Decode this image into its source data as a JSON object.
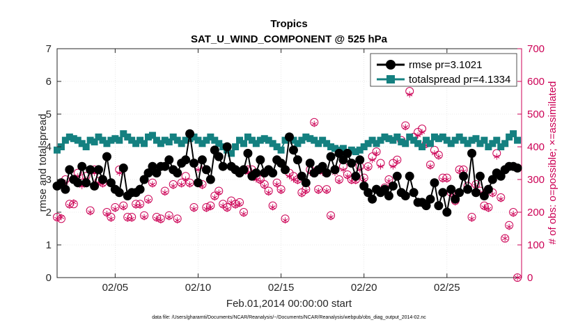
{
  "chart_data": {
    "type": "line",
    "title": "Tropics",
    "subtitle": "SAT_U_WIND_COMPONENT @ 525 hPa",
    "xlabel": "Feb.01,2014 00:00:00 start",
    "ylabel": "rmse and totalspread",
    "y2label": "# of obs: o=possible; ×=assimilated",
    "footnote": "data file: /Users/gharamti/Documents/NCAR/Reanalysis/~/Documents/NCAR/Reanalysis/webpub/obs_diag_output_2014-02.nc",
    "x_unit": "days since Feb.01,2014 00:00",
    "xlim": [
      0.5,
      28.5
    ],
    "ylim": [
      0,
      7
    ],
    "y2lim": [
      0,
      700
    ],
    "xticks": [
      4,
      9,
      14,
      19,
      24
    ],
    "xtick_labels": [
      "02/05",
      "02/10",
      "02/15",
      "02/20",
      "02/25"
    ],
    "yticks": [
      0,
      1,
      2,
      3,
      4,
      5,
      6,
      7
    ],
    "y2ticks": [
      0,
      100,
      200,
      300,
      400,
      500,
      600,
      700
    ],
    "legend_position": "top-right",
    "colors": {
      "rmse": "#000000",
      "spread": "#148080",
      "obs": "#cc0055",
      "axis": "#262626"
    },
    "series": [
      {
        "name": "rmse pr=3.1021",
        "axis": "left",
        "marker": "circle",
        "x": [
          0.5,
          0.75,
          1,
          1.25,
          1.5,
          1.75,
          2,
          2.25,
          2.5,
          2.75,
          3,
          3.25,
          3.5,
          3.75,
          4,
          4.25,
          4.5,
          4.75,
          5,
          5.25,
          5.5,
          5.75,
          6,
          6.25,
          6.5,
          6.75,
          7,
          7.25,
          7.5,
          7.75,
          8,
          8.25,
          8.5,
          8.75,
          9,
          9.25,
          9.5,
          9.75,
          10,
          10.25,
          10.5,
          10.75,
          11,
          11.25,
          11.5,
          11.75,
          12,
          12.25,
          12.5,
          12.75,
          13,
          13.25,
          13.5,
          13.75,
          14,
          14.25,
          14.5,
          14.75,
          15,
          15.25,
          15.5,
          15.75,
          16,
          16.25,
          16.5,
          16.75,
          17,
          17.25,
          17.5,
          17.75,
          18,
          18.25,
          18.5,
          18.75,
          19,
          19.25,
          19.5,
          19.75,
          20,
          20.25,
          20.5,
          20.75,
          21,
          21.25,
          21.5,
          21.75,
          22,
          22.25,
          22.5,
          22.75,
          23,
          23.25,
          23.5,
          23.75,
          24,
          24.25,
          24.5,
          24.75,
          25,
          25.25,
          25.5,
          25.75,
          26,
          26.25,
          26.5,
          26.75,
          27,
          27.25,
          27.5,
          27.75,
          28,
          28.25
        ],
        "values": [
          2.8,
          2.9,
          2.7,
          3.3,
          3.0,
          2.9,
          3.4,
          2.9,
          3.3,
          2.8,
          3.3,
          3.0,
          3.7,
          2.9,
          2.7,
          2.6,
          3.35,
          2.5,
          2.6,
          2.6,
          2.7,
          3.0,
          3.2,
          3.4,
          3.2,
          3.4,
          3.4,
          3.6,
          3.3,
          3.2,
          3.5,
          3.6,
          4.4,
          3.5,
          2.9,
          3.6,
          3.3,
          3.0,
          3.9,
          3.7,
          3.4,
          4.0,
          3.4,
          3.3,
          3.2,
          3.3,
          3.8,
          3.1,
          3.2,
          3.6,
          3.2,
          3.3,
          3.2,
          3.6,
          3.5,
          3.3,
          4.3,
          3.9,
          3.6,
          3.1,
          2.9,
          3.5,
          3.2,
          3.3,
          3.4,
          3.2,
          3.7,
          3.3,
          3.8,
          3.6,
          3.8,
          3.5,
          3.1,
          3.6,
          2.8,
          2.6,
          2.4,
          2.7,
          2.6,
          2.7,
          2.5,
          2.8,
          3.1,
          2.6,
          2.5,
          3.1,
          2.6,
          2.3,
          2.3,
          2.2,
          2.4,
          2.9,
          2.2,
          2.6,
          2.0,
          2.7,
          2.4,
          2.6,
          3.1,
          2.7,
          3.8,
          2.6,
          3.1,
          2.5,
          2.7,
          3.0,
          3.2,
          3.1,
          3.3,
          3.4,
          3.4,
          3.35
        ]
      },
      {
        "name": "totalspread pr=4.1334",
        "axis": "left",
        "marker": "square",
        "x": [
          0.5,
          0.75,
          1,
          1.25,
          1.5,
          1.75,
          2,
          2.25,
          2.5,
          2.75,
          3,
          3.25,
          3.5,
          3.75,
          4,
          4.25,
          4.5,
          4.75,
          5,
          5.25,
          5.5,
          5.75,
          6,
          6.25,
          6.5,
          6.75,
          7,
          7.25,
          7.5,
          7.75,
          8,
          8.25,
          8.5,
          8.75,
          9,
          9.25,
          9.5,
          9.75,
          10,
          10.25,
          10.5,
          10.75,
          11,
          11.25,
          11.5,
          11.75,
          12,
          12.25,
          12.5,
          12.75,
          13,
          13.25,
          13.5,
          13.75,
          14,
          14.25,
          14.5,
          14.75,
          15,
          15.25,
          15.5,
          15.75,
          16,
          16.25,
          16.5,
          16.75,
          17,
          17.25,
          17.5,
          17.75,
          18,
          18.25,
          18.5,
          18.75,
          19,
          19.25,
          19.5,
          19.75,
          20,
          20.25,
          20.5,
          20.75,
          21,
          21.25,
          21.5,
          21.75,
          22,
          22.25,
          22.5,
          22.75,
          23,
          23.25,
          23.5,
          23.75,
          24,
          24.25,
          24.5,
          24.75,
          25,
          25.25,
          25.5,
          25.75,
          26,
          26.25,
          26.5,
          26.75,
          27,
          27.25,
          27.5,
          27.75,
          28,
          28.25
        ],
        "values": [
          3.9,
          4.0,
          4.2,
          4.3,
          4.25,
          4.2,
          4.1,
          4.0,
          4.2,
          4.15,
          4.3,
          4.2,
          4.1,
          4.2,
          4.25,
          4.2,
          4.4,
          4.3,
          4.2,
          4.1,
          4.2,
          4.1,
          4.3,
          4.35,
          4.2,
          4.1,
          4.2,
          4.15,
          4.3,
          4.2,
          4.1,
          4.2,
          4.25,
          4.3,
          4.2,
          4.1,
          4.2,
          4.3,
          4.2,
          4.1,
          4.0,
          3.9,
          3.8,
          4.0,
          4.2,
          4.1,
          4.3,
          4.2,
          4.1,
          4.2,
          4.25,
          4.2,
          4.1,
          4.0,
          3.9,
          4.2,
          4.3,
          4.2,
          4.1,
          4.2,
          4.3,
          4.25,
          4.2,
          4.1,
          4.2,
          4.1,
          4.0,
          3.95,
          3.9,
          3.95,
          3.8,
          3.9,
          3.85,
          3.9,
          4.0,
          4.1,
          4.2,
          4.1,
          4.2,
          4.3,
          4.25,
          4.2,
          4.3,
          4.15,
          4.1,
          4.3,
          4.2,
          4.1,
          4.0,
          4.2,
          4.1,
          4.3,
          4.25,
          4.3,
          4.2,
          4.1,
          4.2,
          4.3,
          4.2,
          4.1,
          4.2,
          4.25,
          4.1,
          4.2,
          4.0,
          4.1,
          4.2,
          4.0,
          4.1,
          4.3,
          4.4,
          4.2
        ]
      },
      {
        "name": "possible",
        "axis": "right",
        "marker": "open-circle",
        "x": [
          0.5,
          0.75,
          1,
          1.25,
          1.5,
          1.75,
          2,
          2.25,
          2.5,
          2.75,
          3,
          3.25,
          3.5,
          3.75,
          4,
          4.25,
          4.5,
          4.75,
          5,
          5.25,
          5.5,
          5.75,
          6,
          6.25,
          6.5,
          6.75,
          7,
          7.25,
          7.5,
          7.75,
          8,
          8.25,
          8.5,
          8.75,
          9,
          9.25,
          9.5,
          9.75,
          10,
          10.25,
          10.5,
          10.75,
          11,
          11.25,
          11.5,
          11.75,
          12,
          12.25,
          12.5,
          12.75,
          13,
          13.25,
          13.5,
          13.75,
          14,
          14.25,
          14.5,
          14.75,
          15,
          15.25,
          15.5,
          15.75,
          16,
          16.25,
          16.5,
          16.75,
          17,
          17.25,
          17.5,
          17.75,
          18,
          18.25,
          18.5,
          18.75,
          19,
          19.25,
          19.5,
          19.75,
          20,
          20.25,
          20.5,
          20.75,
          21,
          21.25,
          21.5,
          21.75,
          22,
          22.25,
          22.5,
          22.75,
          23,
          23.25,
          23.5,
          23.75,
          24,
          24.25,
          24.5,
          24.75,
          25,
          25.25,
          25.5,
          25.75,
          26,
          26.25,
          26.5,
          26.75,
          27,
          27.25,
          27.5,
          27.75,
          28,
          28.25
        ],
        "values": [
          185,
          180,
          300,
          225,
          225,
          320,
          290,
          310,
          205,
          330,
          295,
          290,
          200,
          185,
          215,
          330,
          220,
          185,
          185,
          225,
          225,
          190,
          240,
          290,
          185,
          180,
          265,
          190,
          285,
          180,
          290,
          310,
          290,
          215,
          340,
          285,
          215,
          220,
          250,
          265,
          225,
          215,
          235,
          225,
          230,
          200,
          330,
          330,
          310,
          300,
          285,
          265,
          220,
          290,
          270,
          180,
          320,
          310,
          300,
          260,
          270,
          330,
          475,
          270,
          330,
          270,
          190,
          330,
          300,
          340,
          315,
          300,
          300,
          340,
          305,
          340,
          370,
          385,
          350,
          275,
          300,
          350,
          360,
          420,
          465,
          570,
          430,
          445,
          455,
          410,
          345,
          390,
          375,
          305,
          305,
          260,
          235,
          330,
          330,
          280,
          185,
          285,
          265,
          220,
          215,
          260,
          380,
          245,
          120,
          160,
          200,
          0
        ]
      },
      {
        "name": "assimilated",
        "axis": "right",
        "marker": "asterisk",
        "x": [
          0.5,
          0.75,
          1,
          1.25,
          1.5,
          1.75,
          2,
          2.25,
          2.5,
          2.75,
          3,
          3.25,
          3.5,
          3.75,
          4,
          4.25,
          4.5,
          4.75,
          5,
          5.25,
          5.5,
          5.75,
          6,
          6.25,
          6.5,
          6.75,
          7,
          7.25,
          7.5,
          7.75,
          8,
          8.25,
          8.5,
          8.75,
          9,
          9.25,
          9.5,
          9.75,
          10,
          10.25,
          10.5,
          10.75,
          11,
          11.25,
          11.5,
          11.75,
          12,
          12.25,
          12.5,
          12.75,
          13,
          13.25,
          13.5,
          13.75,
          14,
          14.25,
          14.5,
          14.75,
          15,
          15.25,
          15.5,
          15.75,
          16,
          16.25,
          16.5,
          16.75,
          17,
          17.25,
          17.5,
          17.75,
          18,
          18.25,
          18.5,
          18.75,
          19,
          19.25,
          19.5,
          19.75,
          20,
          20.25,
          20.5,
          20.75,
          21,
          21.25,
          21.5,
          21.75,
          22,
          22.25,
          22.5,
          22.75,
          23,
          23.25,
          23.5,
          23.75,
          24,
          24.25,
          24.5,
          24.75,
          25,
          25.25,
          25.5,
          25.75,
          26,
          26.25,
          26.5,
          26.75,
          27,
          27.25,
          27.5,
          27.75,
          28,
          28.25
        ],
        "values": [
          180,
          185,
          290,
          220,
          230,
          310,
          280,
          300,
          200,
          320,
          290,
          285,
          195,
          180,
          210,
          320,
          215,
          180,
          180,
          220,
          220,
          185,
          235,
          285,
          180,
          175,
          260,
          185,
          280,
          175,
          285,
          300,
          285,
          210,
          330,
          280,
          210,
          215,
          245,
          260,
          220,
          210,
          230,
          220,
          225,
          195,
          320,
          320,
          300,
          295,
          280,
          260,
          215,
          285,
          265,
          175,
          310,
          300,
          295,
          255,
          265,
          320,
          470,
          265,
          320,
          265,
          185,
          320,
          295,
          330,
          310,
          295,
          295,
          330,
          300,
          335,
          360,
          380,
          340,
          270,
          295,
          340,
          355,
          415,
          460,
          560,
          420,
          435,
          445,
          405,
          340,
          380,
          370,
          300,
          300,
          255,
          230,
          325,
          325,
          275,
          180,
          280,
          260,
          215,
          210,
          255,
          370,
          240,
          120,
          155,
          195,
          0
        ]
      }
    ]
  }
}
